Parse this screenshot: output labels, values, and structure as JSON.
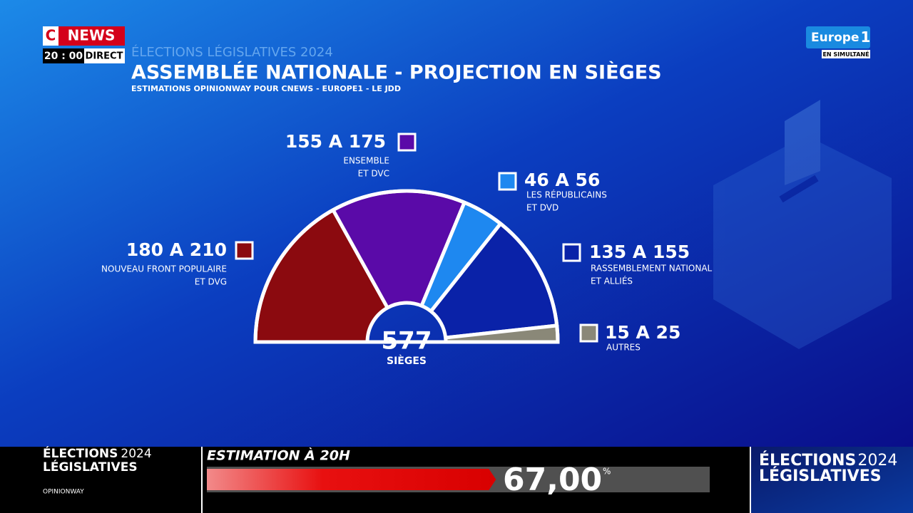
{
  "logo": {
    "c": "C",
    "news": "NEWS",
    "time": "20 : 00",
    "live": "DIRECT",
    "radio": "Europe",
    "radio_num": "1",
    "simulcast": "EN SIMULTANÉ"
  },
  "header": {
    "kicker": "ÉLECTIONS LÉGISLATIVES 2024",
    "title": "ASSEMBLÉE NATIONALE - PROJECTION EN SIÈGES",
    "subtitle": "ESTIMATIONS OPINIONWAY POUR CNEWS - EUROPE1 - LE JDD"
  },
  "chart_data": {
    "type": "hemicycle",
    "total": 577,
    "total_label": "SIÈGES",
    "parties": [
      {
        "range": "180 A 210",
        "lines": [
          "NOUVEAU FRONT POPULAIRE",
          "ET DVG"
        ],
        "low": 180,
        "high": 210,
        "color": "#8b0a0f"
      },
      {
        "range": "155 A 175",
        "lines": [
          "ENSEMBLE",
          "ET DVC"
        ],
        "low": 155,
        "high": 175,
        "color": "#5a0aa8"
      },
      {
        "range": "46 A 56",
        "lines": [
          "LES RÉPUBLICAINS",
          "ET DVD"
        ],
        "low": 46,
        "high": 56,
        "color": "#1e88f0"
      },
      {
        "range": "135 A 155",
        "lines": [
          "RASSEMBLEMENT NATIONAL",
          "ET ALLIÉS"
        ],
        "low": 135,
        "high": 155,
        "color": "#0a22a8"
      },
      {
        "range": "15 A 25",
        "lines": [
          "AUTRES"
        ],
        "low": 15,
        "high": 25,
        "color": "#8a8878"
      }
    ]
  },
  "footer": {
    "left_top": "ÉLECTIONS",
    "left_year": "2024",
    "left_bottom": "LÉGISLATIVES",
    "source": "OPINIONWAY",
    "right_top": "ÉLECTIONS",
    "right_year": "2024",
    "right_bottom": "LÉGISLATIVES",
    "ticker": {
      "title": "ESTIMATION À 20H",
      "value": 67,
      "value_label": "67,00",
      "unit": "%"
    }
  }
}
